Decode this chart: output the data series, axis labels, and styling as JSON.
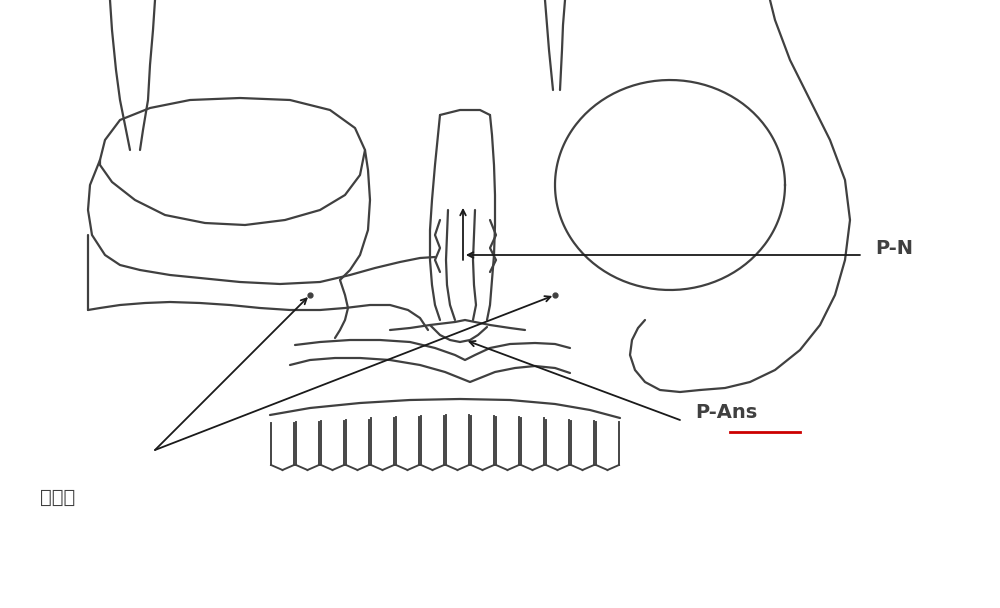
{
  "background_color": "#ffffff",
  "line_color": "#404040",
  "line_width": 1.6,
  "label_P_N": "P-N",
  "label_P_Ans": "P-Ans",
  "label_eye": "睹下孔",
  "arrow_color": "#1a1a1a",
  "underline_color": "#cc0000",
  "figsize": [
    10.0,
    6.08
  ],
  "dpi": 100
}
